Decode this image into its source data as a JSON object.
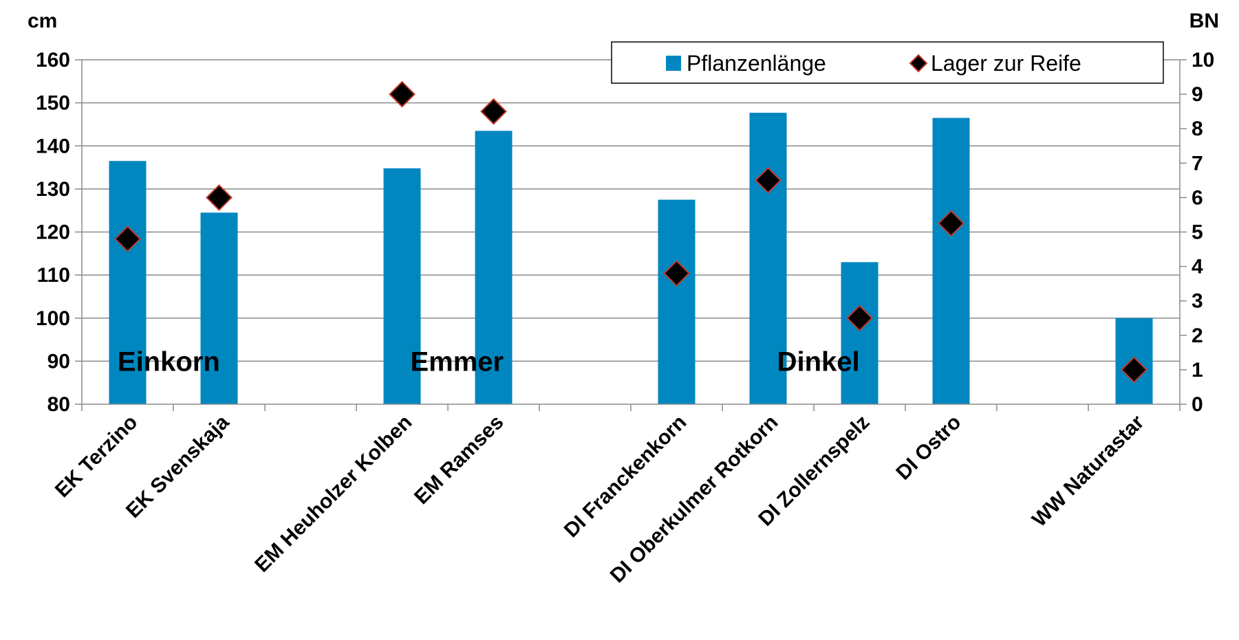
{
  "chart_data": {
    "type": "bar",
    "categories": [
      "EK Terzino",
      "EK Svenskaja",
      "",
      "EM Heuholzer Kolben",
      "EM Ramses",
      "",
      "DI Franckenkorn",
      "DI Oberkulmer Rotkorn",
      "DI Zollernspelz",
      "DI Ostro",
      "",
      "WW Naturastar"
    ],
    "series": [
      {
        "name": "Pflanzenlänge",
        "type": "bar",
        "axis": "left",
        "color": "#0087c0",
        "values": [
          136.5,
          124.5,
          null,
          134.8,
          143.5,
          null,
          127.5,
          147.7,
          113,
          146.5,
          null,
          100
        ]
      },
      {
        "name": "Lager zur Reife",
        "type": "scatter",
        "marker": "diamond",
        "axis": "right",
        "color": "#000000",
        "edge_color": "#c0392b",
        "values": [
          4.8,
          6,
          null,
          9,
          8.5,
          null,
          3.8,
          6.5,
          2.5,
          5.25,
          null,
          1
        ]
      }
    ],
    "ylabel": "cm",
    "ylim": [
      80,
      160
    ],
    "yticks": [
      80,
      90,
      100,
      110,
      120,
      130,
      140,
      150,
      160
    ],
    "y2label": "BN",
    "y2lim": [
      0,
      10
    ],
    "y2ticks": [
      0,
      1,
      2,
      3,
      4,
      5,
      6,
      7,
      8,
      9,
      10
    ],
    "grid": "horizontal",
    "legend_position": "top-right",
    "annotations": [
      {
        "text": "Einkorn",
        "category_index": 0.45
      },
      {
        "text": "Emmer",
        "category_index": 3.6
      },
      {
        "text": "Dinkel",
        "category_index": 7.55
      }
    ]
  }
}
